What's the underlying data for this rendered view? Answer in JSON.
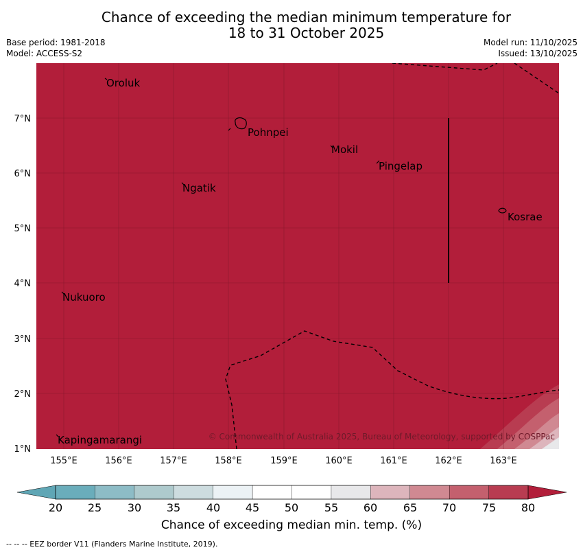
{
  "title": {
    "line1": "Chance of exceeding the median minimum temperature for",
    "line2": "18 to 31 October 2025"
  },
  "meta": {
    "base_period": "Base period: 1981-2018",
    "model": "Model: ACCESS-S2",
    "model_run": "Model run: 11/10/2025",
    "issued": "Issued: 13/10/2025"
  },
  "map": {
    "fill_color": "#b21e3a",
    "latitude_labels": [
      "7°N",
      "6°N",
      "5°N",
      "4°N",
      "3°N",
      "2°N",
      "1°N"
    ],
    "longitude_labels": [
      "155°E",
      "156°E",
      "157°E",
      "158°E",
      "159°E",
      "160°E",
      "161°E",
      "162°E",
      "163°E"
    ],
    "places": [
      "Oroluk",
      "Pohnpei",
      "Mokil",
      "Pingelap",
      "Ngatik",
      "Kosrae",
      "Nukuoro",
      "Kapingamarangi"
    ],
    "copyright": "© Commonwealth of Australia 2025, Bureau of Meteorology, supported by COSPPac"
  },
  "colorbar": {
    "ticks": [
      "20",
      "25",
      "30",
      "35",
      "40",
      "45",
      "50",
      "55",
      "60",
      "65",
      "70",
      "75",
      "80"
    ],
    "colors": [
      "#6aadbb",
      "#8dbcc6",
      "#aecacd",
      "#cddcdf",
      "#ecf2f5",
      "#ffffff",
      "#ffffff",
      "#e8e8ea",
      "#ddb5bc",
      "#d08992",
      "#c4606e",
      "#b83c51"
    ],
    "under_color": "#5fa6b5",
    "over_color": "#b21e3a",
    "label": "Chance of exceeding median min. temp. (%)"
  },
  "footnote": "--  --  -- EEZ border V11 (Flanders Marine Institute, 2019)."
}
